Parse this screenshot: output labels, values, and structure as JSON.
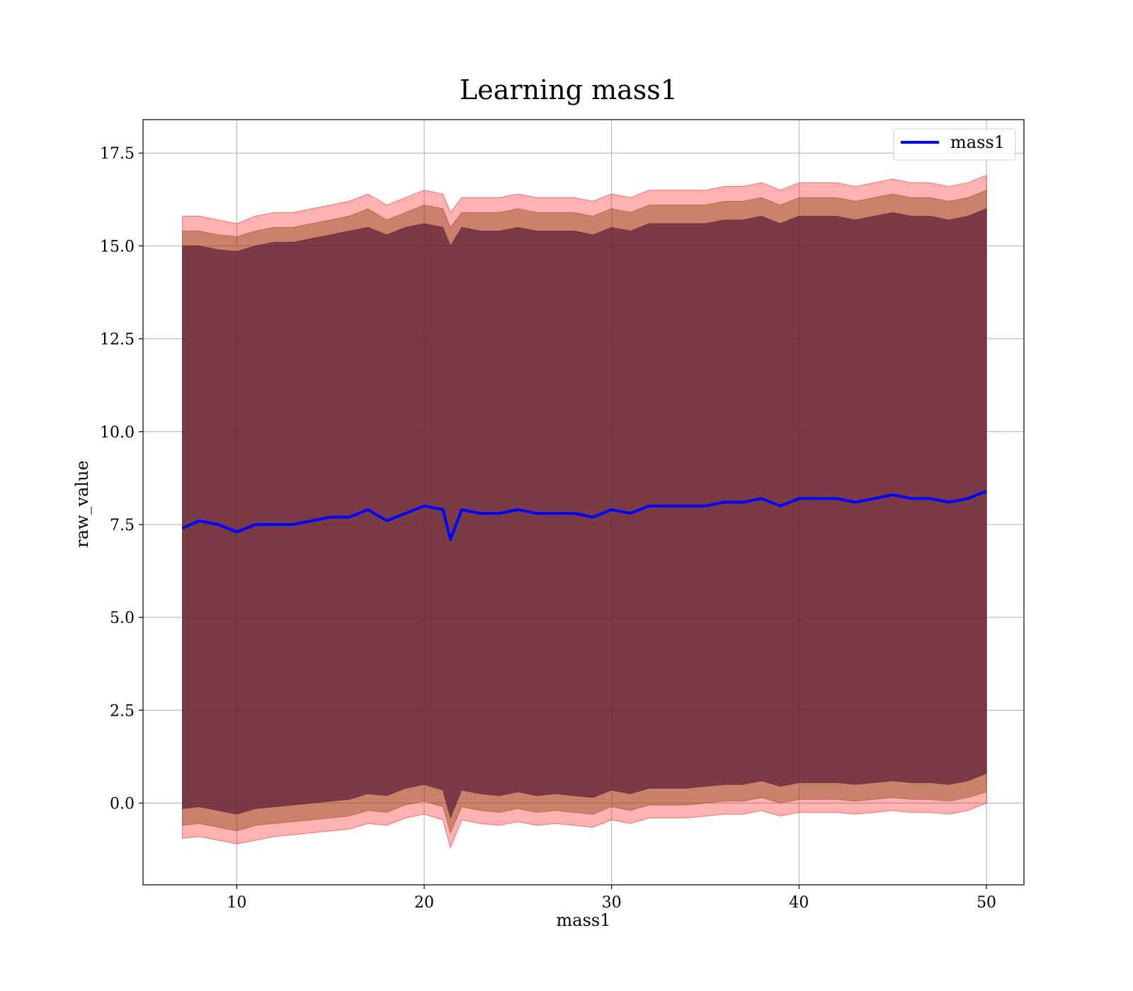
{
  "chart_data": {
    "type": "line",
    "title": "Learning mass1",
    "xlabel": "mass1",
    "ylabel": "raw_value",
    "xlim": [
      5,
      52
    ],
    "ylim": [
      -2.2,
      18.4
    ],
    "x_ticks": [
      10,
      20,
      30,
      40,
      50
    ],
    "x_tick_labels": [
      "10",
      "20",
      "30",
      "40",
      "50"
    ],
    "y_ticks": [
      0.0,
      2.5,
      5.0,
      7.5,
      10.0,
      12.5,
      15.0,
      17.5
    ],
    "y_tick_labels": [
      "0.0",
      "2.5",
      "5.0",
      "7.5",
      "10.0",
      "12.5",
      "15.0",
      "17.5"
    ],
    "grid": true,
    "legend_position": "top-right",
    "colors": {
      "line": "#0000ff",
      "outer_band": "#ff0000",
      "middle_band": "#8b4513",
      "inner_band": "#4b1030",
      "grid": "#b0b0b0"
    },
    "series": [
      {
        "name": "mass1",
        "x": [
          7.1,
          8.0,
          9.0,
          10.0,
          11.0,
          12.0,
          13.0,
          14.0,
          15.0,
          16.0,
          17.0,
          18.0,
          19.0,
          20.0,
          21.0,
          21.4,
          22.0,
          23.0,
          24.0,
          25.0,
          26.0,
          27.0,
          28.0,
          29.0,
          30.0,
          31.0,
          32.0,
          33.0,
          34.0,
          35.0,
          36.0,
          37.0,
          38.0,
          39.0,
          40.0,
          41.0,
          42.0,
          43.0,
          44.0,
          45.0,
          46.0,
          47.0,
          48.0,
          49.0,
          50.0
        ],
        "y": [
          7.4,
          7.6,
          7.5,
          7.3,
          7.5,
          7.5,
          7.5,
          7.6,
          7.7,
          7.7,
          7.9,
          7.6,
          7.8,
          8.0,
          7.9,
          7.1,
          7.9,
          7.8,
          7.8,
          7.9,
          7.8,
          7.8,
          7.8,
          7.7,
          7.9,
          7.8,
          8.0,
          8.0,
          8.0,
          8.0,
          8.1,
          8.1,
          8.2,
          8.0,
          8.2,
          8.2,
          8.2,
          8.1,
          8.2,
          8.3,
          8.2,
          8.2,
          8.1,
          8.2,
          8.4
        ]
      }
    ],
    "bands": [
      {
        "name": "outer",
        "lower": [
          -0.95,
          -0.9,
          -1.0,
          -1.1,
          -1.0,
          -0.9,
          -0.85,
          -0.8,
          -0.75,
          -0.7,
          -0.55,
          -0.6,
          -0.4,
          -0.3,
          -0.45,
          -1.2,
          -0.45,
          -0.55,
          -0.6,
          -0.5,
          -0.6,
          -0.55,
          -0.6,
          -0.65,
          -0.45,
          -0.55,
          -0.4,
          -0.4,
          -0.4,
          -0.35,
          -0.3,
          -0.3,
          -0.2,
          -0.35,
          -0.25,
          -0.25,
          -0.25,
          -0.3,
          -0.25,
          -0.2,
          -0.25,
          -0.25,
          -0.3,
          -0.2,
          0.0
        ],
        "upper": [
          15.8,
          15.8,
          15.7,
          15.6,
          15.8,
          15.9,
          15.9,
          16.0,
          16.1,
          16.2,
          16.4,
          16.1,
          16.3,
          16.5,
          16.4,
          15.9,
          16.3,
          16.3,
          16.3,
          16.4,
          16.3,
          16.3,
          16.3,
          16.2,
          16.4,
          16.3,
          16.5,
          16.5,
          16.5,
          16.5,
          16.6,
          16.6,
          16.7,
          16.5,
          16.7,
          16.7,
          16.7,
          16.6,
          16.7,
          16.8,
          16.7,
          16.7,
          16.6,
          16.7,
          16.9
        ]
      },
      {
        "name": "middle",
        "lower": [
          -0.6,
          -0.55,
          -0.65,
          -0.75,
          -0.6,
          -0.55,
          -0.5,
          -0.45,
          -0.4,
          -0.35,
          -0.2,
          -0.25,
          -0.05,
          0.05,
          -0.1,
          -0.8,
          -0.1,
          -0.2,
          -0.25,
          -0.15,
          -0.25,
          -0.2,
          -0.25,
          -0.3,
          -0.1,
          -0.2,
          -0.05,
          -0.05,
          -0.05,
          0.0,
          0.05,
          0.05,
          0.15,
          0.0,
          0.1,
          0.1,
          0.1,
          0.05,
          0.1,
          0.15,
          0.1,
          0.1,
          0.05,
          0.15,
          0.3
        ],
        "upper": [
          15.4,
          15.4,
          15.3,
          15.25,
          15.4,
          15.5,
          15.5,
          15.6,
          15.7,
          15.8,
          16.0,
          15.7,
          15.9,
          16.1,
          16.0,
          15.5,
          15.9,
          15.9,
          15.9,
          16.0,
          15.9,
          15.9,
          15.9,
          15.8,
          16.0,
          15.9,
          16.1,
          16.1,
          16.1,
          16.1,
          16.2,
          16.2,
          16.3,
          16.1,
          16.3,
          16.3,
          16.3,
          16.2,
          16.3,
          16.4,
          16.3,
          16.3,
          16.2,
          16.3,
          16.5
        ]
      },
      {
        "name": "inner",
        "lower": [
          -0.15,
          -0.1,
          -0.2,
          -0.3,
          -0.15,
          -0.1,
          -0.05,
          0.0,
          0.05,
          0.1,
          0.25,
          0.2,
          0.4,
          0.5,
          0.35,
          -0.4,
          0.35,
          0.25,
          0.2,
          0.3,
          0.2,
          0.25,
          0.2,
          0.15,
          0.35,
          0.25,
          0.4,
          0.4,
          0.4,
          0.45,
          0.5,
          0.5,
          0.6,
          0.45,
          0.55,
          0.55,
          0.55,
          0.5,
          0.55,
          0.6,
          0.55,
          0.55,
          0.5,
          0.6,
          0.8
        ],
        "upper": [
          15.0,
          15.0,
          14.9,
          14.85,
          15.0,
          15.1,
          15.1,
          15.2,
          15.3,
          15.4,
          15.5,
          15.3,
          15.5,
          15.6,
          15.5,
          15.0,
          15.5,
          15.4,
          15.4,
          15.5,
          15.4,
          15.4,
          15.4,
          15.3,
          15.5,
          15.4,
          15.6,
          15.6,
          15.6,
          15.6,
          15.7,
          15.7,
          15.8,
          15.6,
          15.8,
          15.8,
          15.8,
          15.7,
          15.8,
          15.9,
          15.8,
          15.8,
          15.7,
          15.8,
          16.0
        ]
      }
    ]
  }
}
